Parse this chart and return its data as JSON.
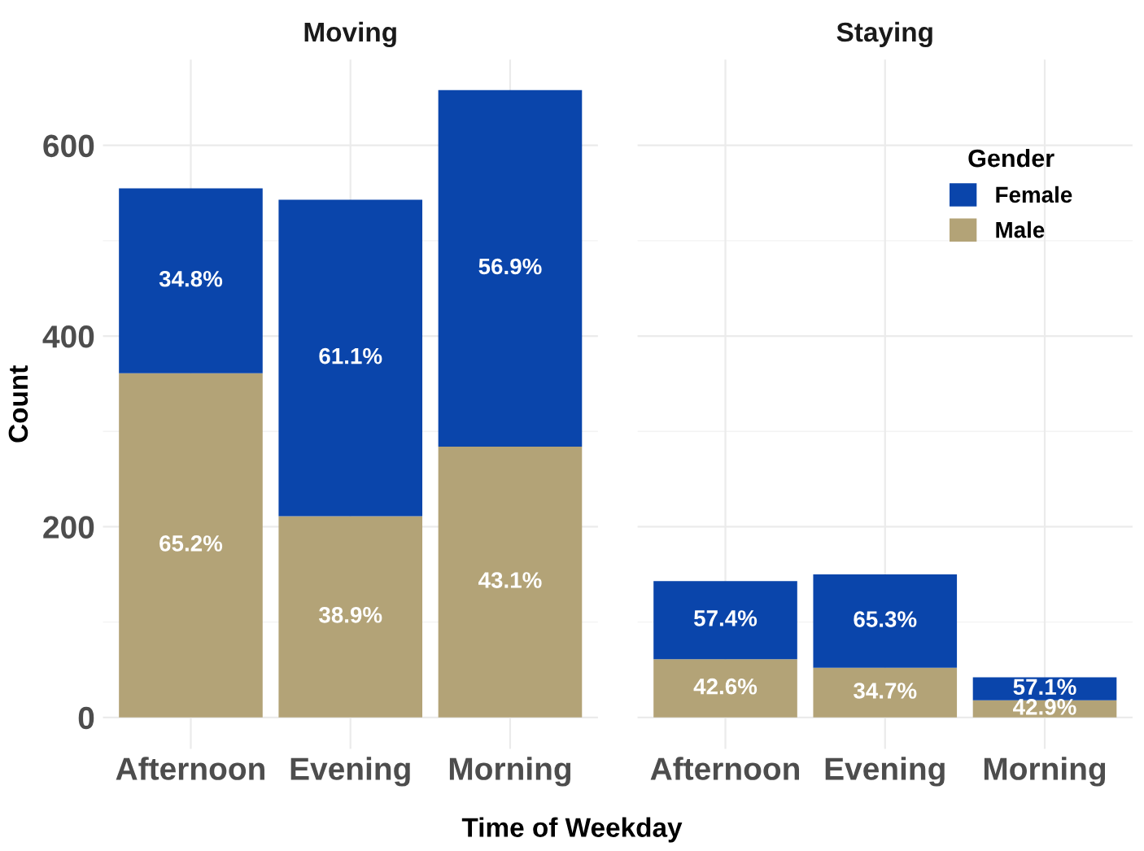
{
  "chart_data": [
    {
      "type": "bar",
      "title": "Moving",
      "xlabel": "Time of Weekday",
      "ylabel": "Count",
      "categories": [
        "Afternoon",
        "Evening",
        "Morning"
      ],
      "stacked": true,
      "ylim": [
        -33,
        690
      ],
      "yticks": [
        0,
        200,
        400,
        600
      ],
      "grid": true,
      "series": [
        {
          "color": "#b3a377",
          "values": [
            361,
            211,
            284
          ]
        },
        {
          "color": "#0a45ab",
          "values": [
            194,
            332,
            374
          ]
        }
      ],
      "annotations": [
        "65.2%",
        "38.9%",
        "43.1%",
        "34.8%",
        "61.1%",
        "56.9%"
      ]
    },
    {
      "type": "bar",
      "title": "Staying",
      "legend_title": "Gender",
      "categories": [
        "Afternoon",
        "Evening",
        "Morning"
      ],
      "stacked": true,
      "ylim": [
        -33,
        690
      ],
      "yticks": [
        0,
        200,
        400,
        600
      ],
      "tick_labels": "x",
      "grid": true,
      "legend": "top right",
      "series": [
        {
          "name": "Male",
          "color": "#b3a377",
          "values": [
            61,
            52,
            18
          ]
        },
        {
          "name": "Female",
          "color": "#0a45ab",
          "values": [
            82,
            98,
            24
          ]
        }
      ],
      "annotations": [
        "42.6%",
        "34.7%",
        "42.9%",
        "57.4%",
        "65.3%",
        "57.1%"
      ]
    }
  ]
}
